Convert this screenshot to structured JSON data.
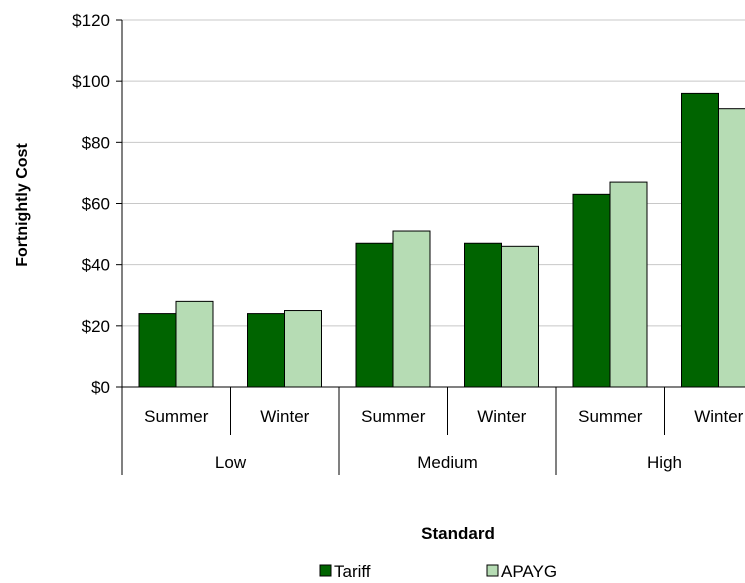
{
  "chart_data": {
    "type": "bar",
    "groups": [
      {
        "label": "Low",
        "categories": [
          "Summer",
          "Winter"
        ]
      },
      {
        "label": "Medium",
        "categories": [
          "Summer",
          "Winter"
        ]
      },
      {
        "label": "High",
        "categories": [
          "Summer",
          "Winter"
        ]
      }
    ],
    "categories": [
      "Summer",
      "Winter",
      "Summer",
      "Winter",
      "Summer",
      "Winter"
    ],
    "series": [
      {
        "name": "Tariff",
        "values": [
          24,
          24,
          47,
          47,
          63,
          96
        ],
        "color": "#006400"
      },
      {
        "name": "APAYG",
        "values": [
          28,
          25,
          51,
          46,
          67,
          91
        ],
        "color": "#b6dcb4"
      }
    ],
    "ylabel": "Fortnightly Cost",
    "xlabel": "Standard",
    "ylim": [
      0,
      120
    ],
    "yticks": [
      0,
      20,
      40,
      60,
      80,
      100,
      120
    ],
    "ytick_labels": [
      "$0",
      "$20",
      "$40",
      "$60",
      "$80",
      "$100",
      "$120"
    ],
    "grid": true,
    "legend_position": "bottom"
  }
}
